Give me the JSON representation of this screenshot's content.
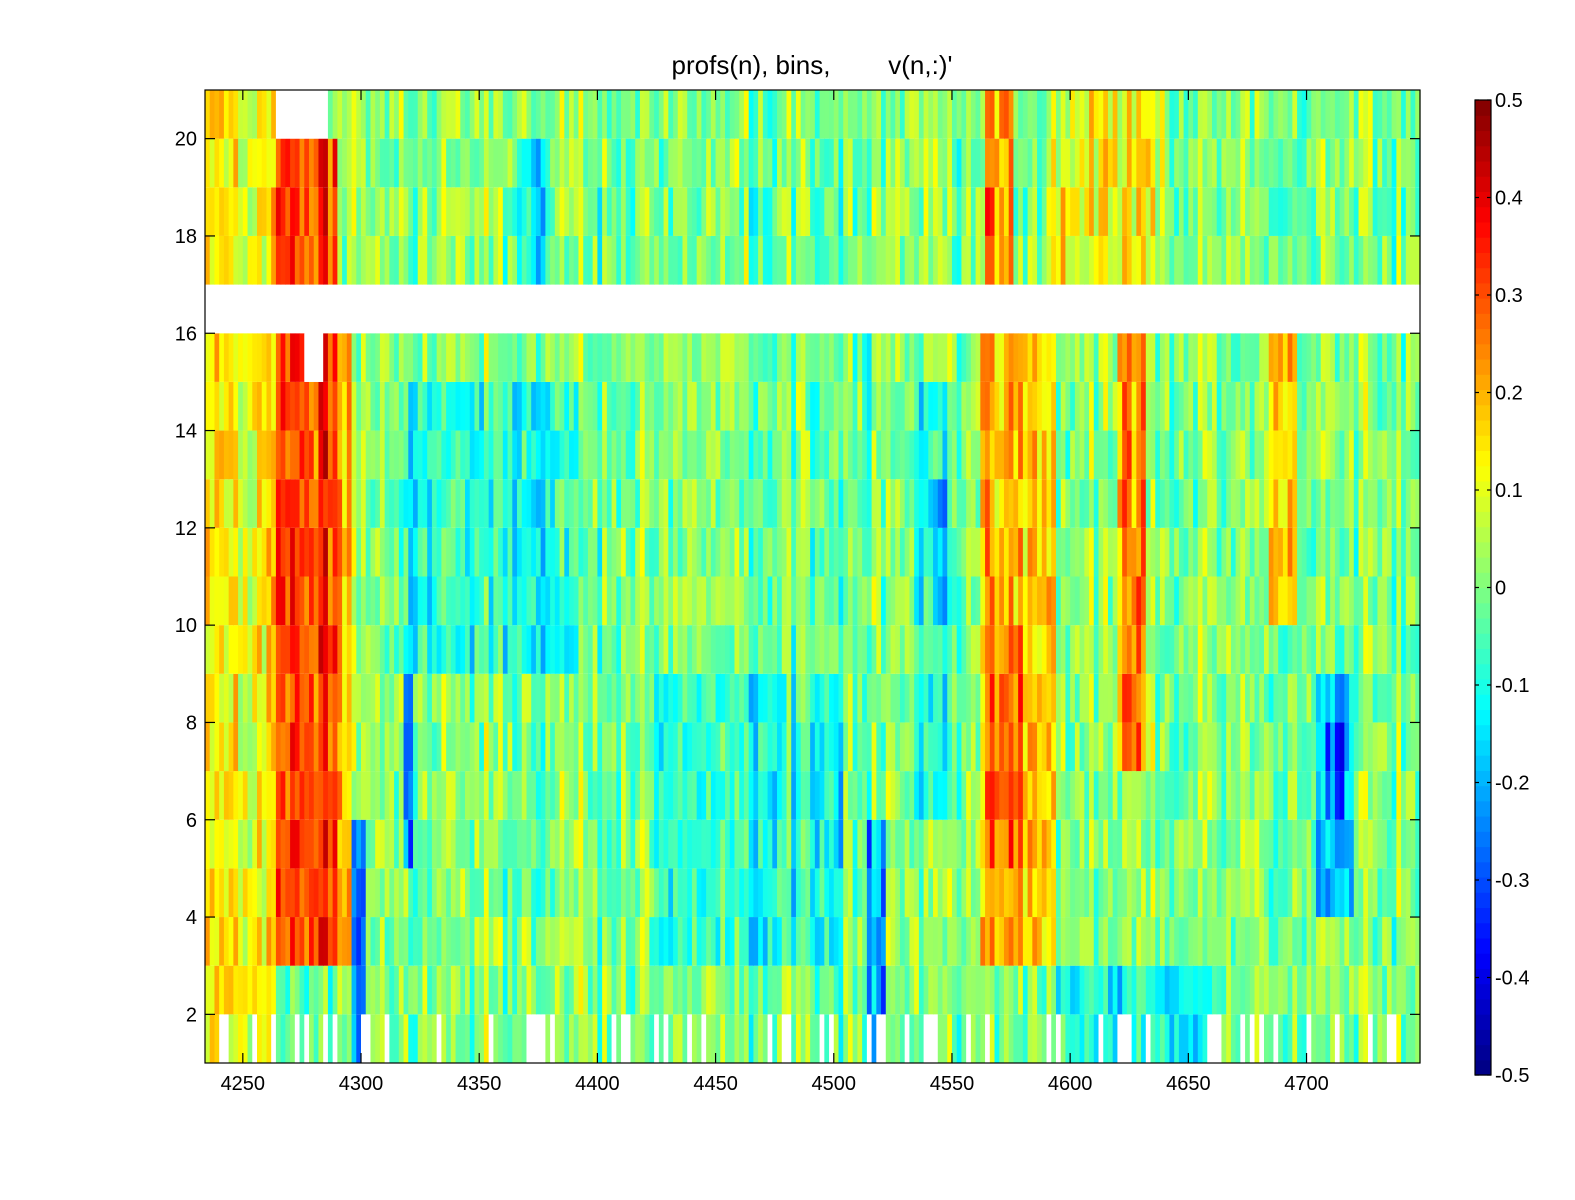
{
  "chart_data": {
    "type": "heatmap",
    "title": "profs(n), bins,        v(n,:)'",
    "xlabel": "",
    "ylabel": "",
    "xlim": [
      4234,
      4748
    ],
    "ylim": [
      1,
      21
    ],
    "x_ticks": [
      4250,
      4300,
      4350,
      4400,
      4450,
      4500,
      4550,
      4600,
      4650,
      4700
    ],
    "y_ticks": [
      2,
      4,
      6,
      8,
      10,
      12,
      14,
      16,
      18,
      20
    ],
    "colorbar": {
      "colormap": "jet",
      "clim": [
        -0.5,
        0.5
      ],
      "ticks": [
        -0.5,
        -0.4,
        -0.3,
        -0.2,
        -0.1,
        0,
        0.1,
        0.2,
        0.3,
        0.4,
        0.5
      ],
      "tick_labels": [
        "-0.5",
        "-0.4",
        "-0.3",
        "-0.2",
        "-0.1",
        "0",
        "0.1",
        "0.2",
        "0.3",
        "0.4",
        "0.5"
      ]
    },
    "rows": [
      {
        "y": 1.5,
        "from": 4234,
        "to": 4748
      },
      {
        "y": 2.5,
        "from": 4234,
        "to": 4748
      },
      {
        "y": 3.5,
        "from": 4234,
        "to": 4748
      },
      {
        "y": 4.5,
        "from": 4234,
        "to": 4748
      },
      {
        "y": 5.5,
        "from": 4234,
        "to": 4748
      },
      {
        "y": 6.5,
        "from": 4234,
        "to": 4748
      },
      {
        "y": 7.5,
        "from": 4234,
        "to": 4748
      },
      {
        "y": 8.5,
        "from": 4234,
        "to": 4748
      },
      {
        "y": 9.5,
        "from": 4234,
        "to": 4748
      },
      {
        "y": 10.5,
        "from": 4234,
        "to": 4748
      },
      {
        "y": 11.5,
        "from": 4234,
        "to": 4748
      },
      {
        "y": 12.5,
        "from": 4234,
        "to": 4748
      },
      {
        "y": 13.5,
        "from": 4234,
        "to": 4748
      },
      {
        "y": 14.5,
        "from": 4234,
        "to": 4748
      },
      {
        "y": 15.5,
        "from": 4234,
        "to": 4748
      },
      {
        "y": 16.5,
        "from": 4234,
        "to": 4748,
        "missing": true
      },
      {
        "y": 17.5,
        "from": 4234,
        "to": 4748
      },
      {
        "y": 18.5,
        "from": 4234,
        "to": 4748
      },
      {
        "y": 19.5,
        "from": 4234,
        "to": 4748
      },
      {
        "y": 20.5,
        "from": 4234,
        "to": 4748
      }
    ],
    "features": [
      {
        "x_from": 4264,
        "x_to": 4290,
        "y_from": 3,
        "y_to": 20,
        "value": 0.33
      },
      {
        "x_from": 4234,
        "x_to": 4264,
        "y_from": 1,
        "y_to": 21,
        "value": 0.14
      },
      {
        "x_from": 4290,
        "x_to": 4296,
        "y_from": 3,
        "y_to": 16,
        "value": 0.2
      },
      {
        "x_from": 4297,
        "x_to": 4303,
        "y_from": 1,
        "y_to": 6,
        "value": -0.28
      },
      {
        "x_from": 4318,
        "x_to": 4323,
        "y_from": 5,
        "y_to": 13,
        "value": -0.24
      },
      {
        "x_from": 4345,
        "x_to": 4355,
        "y_from": 11,
        "y_to": 14,
        "value": -0.16
      },
      {
        "x_from": 4368,
        "x_to": 4383,
        "y_from": 9,
        "y_to": 15,
        "value": -0.2
      },
      {
        "x_from": 4316,
        "x_to": 4395,
        "y_from": 9,
        "y_to": 15,
        "value": -0.1
      },
      {
        "x_from": 4367,
        "x_to": 4380,
        "y_from": 17,
        "y_to": 20,
        "value": -0.12
      },
      {
        "x_from": 4425,
        "x_to": 4505,
        "y_from": 3,
        "y_to": 9,
        "value": -0.08
      },
      {
        "x_from": 4515,
        "x_to": 4522,
        "y_from": 1,
        "y_to": 6,
        "value": -0.22
      },
      {
        "x_from": 4535,
        "x_to": 4550,
        "y_from": 6,
        "y_to": 15,
        "value": -0.13
      },
      {
        "x_from": 4543,
        "x_to": 4549,
        "y_from": 10,
        "y_to": 13,
        "value": -0.24
      },
      {
        "x_from": 4563,
        "x_to": 4595,
        "y_from": 3,
        "y_to": 16,
        "value": 0.18
      },
      {
        "x_from": 4567,
        "x_to": 4580,
        "y_from": 5,
        "y_to": 10,
        "value": 0.27
      },
      {
        "x_from": 4564,
        "x_to": 4576,
        "y_from": 17,
        "y_to": 21,
        "value": 0.22
      },
      {
        "x_from": 4620,
        "x_to": 4632,
        "y_from": 7,
        "y_to": 17,
        "value": 0.22
      },
      {
        "x_from": 4685,
        "x_to": 4697,
        "y_from": 10,
        "y_to": 16,
        "value": 0.2
      },
      {
        "x_from": 4705,
        "x_to": 4720,
        "y_from": 4,
        "y_to": 9,
        "value": -0.2
      },
      {
        "x_from": 4708,
        "x_to": 4716,
        "y_from": 6,
        "y_to": 8,
        "value": -0.3
      },
      {
        "x_from": 4595,
        "x_to": 4660,
        "y_from": 1,
        "y_to": 3,
        "value": -0.12
      },
      {
        "x_from": 4590,
        "x_to": 4640,
        "y_from": 17,
        "y_to": 21,
        "value": 0.1
      }
    ],
    "missing_blocks": [
      {
        "x_from": 4265,
        "x_to": 4287,
        "y_from": 20,
        "y_to": 21
      },
      {
        "x_from": 4276,
        "x_to": 4285,
        "y_from": 15,
        "y_to": 16
      }
    ]
  }
}
